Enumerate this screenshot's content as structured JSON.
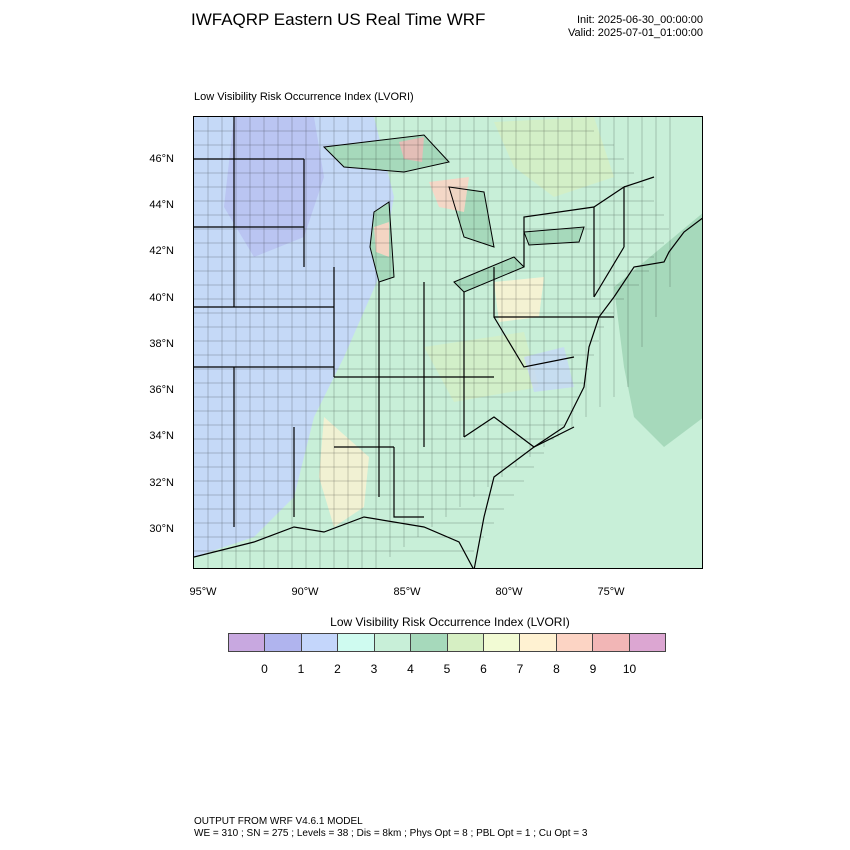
{
  "header": {
    "title": "IWFAQRP Eastern US Real Time WRF",
    "init": "Init: 2025-06-30_00:00:00",
    "valid": "Valid: 2025-07-01_01:00:00"
  },
  "map": {
    "subtitle": "Low Visibility Risk Occurrence Index   (LVORI)",
    "lat_labels": [
      "46°N",
      "44°N",
      "42°N",
      "40°N",
      "38°N",
      "36°N",
      "34°N",
      "32°N",
      "30°N"
    ],
    "lon_labels": [
      "95°W",
      "90°W",
      "85°W",
      "80°W",
      "75°W"
    ]
  },
  "colorbar": {
    "title": "Low Visibility Risk Occurrence Index  (LVORI)",
    "labels": [
      "0",
      "1",
      "2",
      "3",
      "4",
      "5",
      "6",
      "7",
      "8",
      "9",
      "10"
    ],
    "colors": [
      "#c8a8e0",
      "#b0b4ee",
      "#c4d6fb",
      "#cffbf0",
      "#c8efd8",
      "#a6d9bb",
      "#d6efc3",
      "#f2fbd4",
      "#fff2d2",
      "#fcd4c4",
      "#f2b6b6",
      "#dca6d2"
    ]
  },
  "footer": {
    "line1": "OUTPUT FROM WRF V4.6.1 MODEL",
    "line2": "WE = 310 ; SN = 275 ; Levels = 38 ; Dis = 8km ; Phys Opt = 8 ; PBL Opt = 1 ; Cu Opt = 3"
  }
}
